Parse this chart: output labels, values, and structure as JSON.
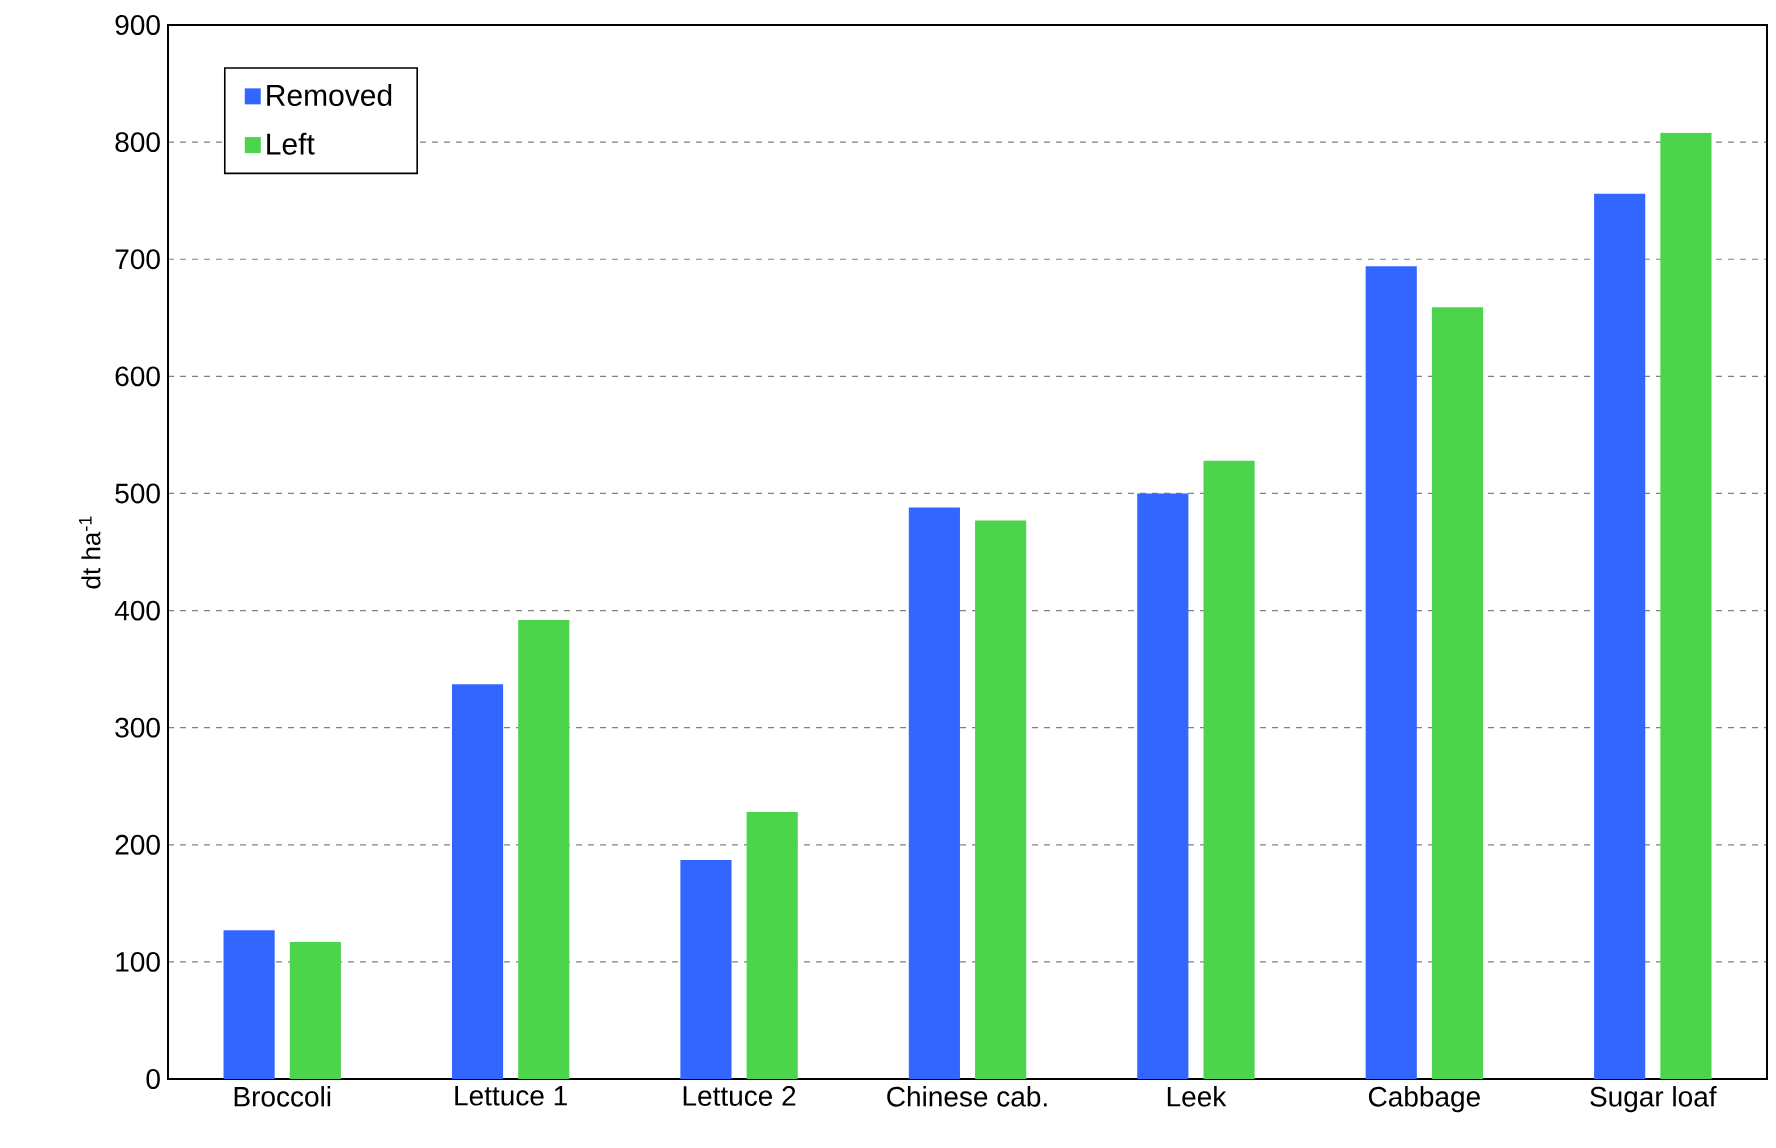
{
  "chart_data": {
    "type": "bar",
    "ylabel": "dt ha$^{-1}$",
    "categories": [
      "Broccoli",
      "Lettuce 1",
      "Lettuce 2",
      "Chinese cab.",
      "Leek",
      "Cabbage",
      "Sugar loaf"
    ],
    "series": [
      {
        "name": "Removed",
        "color": "#3366ff",
        "values": [
          127,
          337,
          187,
          488,
          500,
          694,
          756
        ]
      },
      {
        "name": "Left",
        "color": "#4dd44d",
        "values": [
          117,
          392,
          228,
          477,
          528,
          659,
          808
        ]
      }
    ],
    "ylim": [
      0,
      900
    ],
    "yticks": [
      0,
      100,
      200,
      300,
      400,
      500,
      600,
      700,
      800,
      900
    ],
    "grid": "y",
    "legend": "top left"
  }
}
